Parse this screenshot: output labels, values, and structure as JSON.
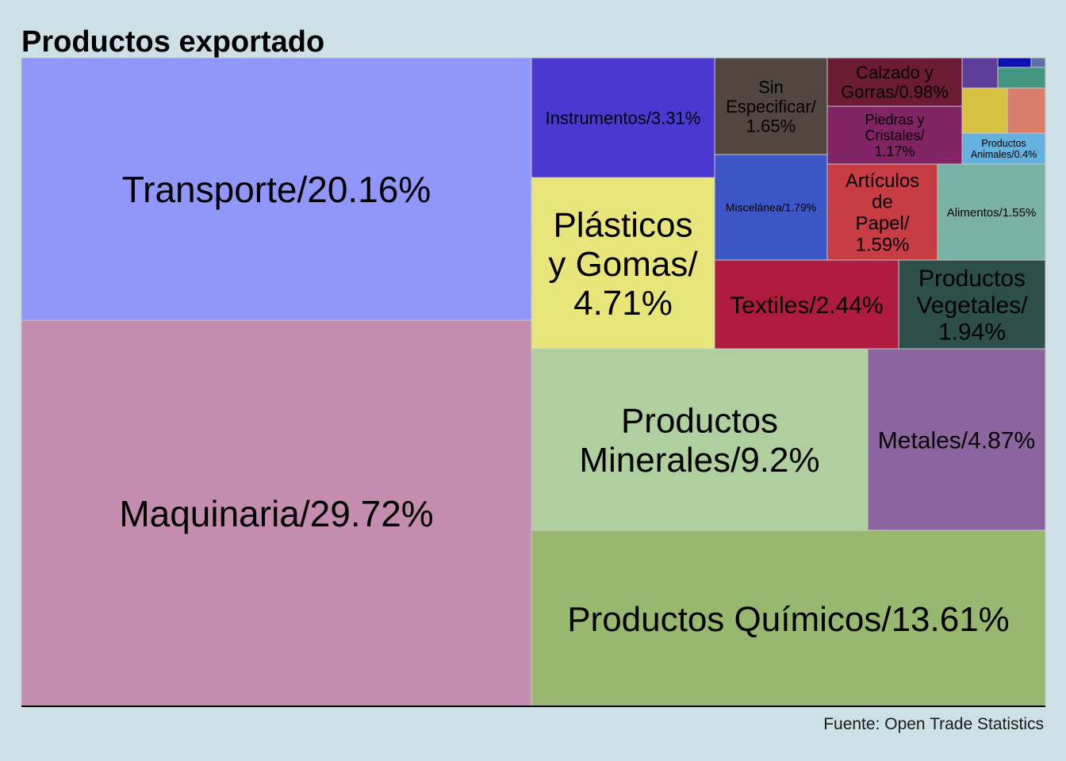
{
  "title": "Productos exportado",
  "caption": "Fuente: Open Trade Statistics",
  "chart_data": {
    "type": "treemap",
    "title": "Productos exportado",
    "items": [
      {
        "name": "Maquinaria",
        "label": [
          "Maquinaria/29.72%"
        ],
        "value": 29.72,
        "color": "#c48daf",
        "text_color": "#000000"
      },
      {
        "name": "Transporte",
        "label": [
          "Transporte/20.16%"
        ],
        "value": 20.16,
        "color": "#9197fa",
        "text_color": "#000000"
      },
      {
        "name": "Productos Químicos",
        "label": [
          "Productos Químicos/13.61%"
        ],
        "value": 13.61,
        "color": "#99b86f",
        "text_color": "#000000"
      },
      {
        "name": "Productos Minerales",
        "label": [
          "Productos",
          "Minerales/9.2%"
        ],
        "value": 9.2,
        "color": "#afd09e",
        "text_color": "#000000"
      },
      {
        "name": "Metales",
        "label": [
          "Metales/4.87%"
        ],
        "value": 4.87,
        "color": "#8c65a0",
        "text_color": "#000000"
      },
      {
        "name": "Plásticos y Gomas",
        "label": [
          "Plásticos",
          "y Gomas/",
          "4.71%"
        ],
        "value": 4.71,
        "color": "#e8e57a",
        "text_color": "#000000"
      },
      {
        "name": "Instrumentos",
        "label": [
          "Instrumentos/3.31%"
        ],
        "value": 3.31,
        "color": "#4a38d1",
        "text_color": "#000000"
      },
      {
        "name": "Textiles",
        "label": [
          "Textiles/2.44%"
        ],
        "value": 2.44,
        "color": "#ae1b3e",
        "text_color": "#000000"
      },
      {
        "name": "Productos Vegetales",
        "label": [
          "Productos",
          "Vegetales/",
          "1.94%"
        ],
        "value": 1.94,
        "color": "#2d4f49",
        "text_color": "#000000"
      },
      {
        "name": "Miscelánea",
        "label": [
          "Miscelánea/1.79%"
        ],
        "value": 1.79,
        "color": "#3d56c6",
        "text_color": "#000000"
      },
      {
        "name": "Sin Especificar",
        "label": [
          "Sin",
          "Especificar/",
          "1.65%"
        ],
        "value": 1.65,
        "color": "#524740",
        "text_color": "#000000"
      },
      {
        "name": "Artículos de Papel",
        "label": [
          "Artículos",
          "de",
          "Papel/",
          "1.59%"
        ],
        "value": 1.59,
        "color": "#c83c44",
        "text_color": "#000000"
      },
      {
        "name": "Alimentos",
        "label": [
          "Alimentos/1.55%"
        ],
        "value": 1.55,
        "color": "#79b1a7",
        "text_color": "#000000"
      },
      {
        "name": "Piedras y Cristales",
        "label": [
          "Piedras y",
          "Cristales/",
          "1.17%"
        ],
        "value": 1.17,
        "color": "#822365",
        "text_color": "#000000"
      },
      {
        "name": "Calzado y Gorras",
        "label": [
          "Calzado y",
          "Gorras/0.98%"
        ],
        "value": 0.98,
        "color": "#6c1b35",
        "text_color": "#000000"
      },
      {
        "name": "Productos Animales",
        "label": [
          "Productos",
          "Animales/0.4%"
        ],
        "value": 0.4,
        "color": "#62b1de",
        "text_color": "#000000"
      },
      {
        "name": "",
        "label": [],
        "value": 0.55,
        "color": "#d6c144",
        "text_color": "#000000"
      },
      {
        "name": "",
        "label": [],
        "value": 0.44,
        "color": "#d87e6a",
        "text_color": "#000000"
      },
      {
        "name": "",
        "label": [],
        "value": 0.27,
        "color": "#5d3d9a",
        "text_color": "#000000"
      },
      {
        "name": "",
        "label": [],
        "value": 0.18,
        "color": "#439580",
        "text_color": "#000000"
      },
      {
        "name": "",
        "label": [],
        "value": 0.1,
        "color": "#1010b0",
        "text_color": "#000000"
      },
      {
        "name": "",
        "label": [],
        "value": 0.02,
        "color": "#5b72a8",
        "text_color": "#000000"
      }
    ]
  }
}
